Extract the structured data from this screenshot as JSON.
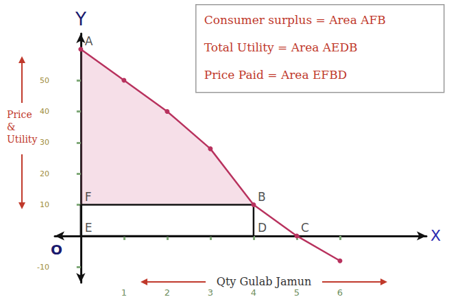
{
  "chart_data": {
    "type": "line",
    "x": [
      0,
      1,
      2,
      3,
      4,
      5,
      6
    ],
    "values": [
      60,
      50,
      40,
      28,
      10,
      0,
      -8
    ],
    "color": "#b8325e",
    "marker": "circle",
    "xlim": [
      -0.6,
      8
    ],
    "xticks": [
      1,
      2,
      3,
      4,
      5,
      6
    ],
    "ylim": [
      -15,
      65
    ],
    "yticks": [
      -10,
      10,
      20,
      30,
      40,
      50
    ],
    "grid": false,
    "x_label": "Qty Gulab Jamun",
    "y_label": "Price & Utility",
    "x_axis_name": "X",
    "y_axis_name": "Y",
    "origin_label": "O",
    "points": [
      {
        "label": "A",
        "x": 0,
        "y": 60
      },
      {
        "label": "F",
        "x": 0,
        "y": 10
      },
      {
        "label": "E",
        "x": 0,
        "y": 0
      },
      {
        "label": "D",
        "x": 4,
        "y": 0
      },
      {
        "label": "B",
        "x": 4,
        "y": 10
      },
      {
        "label": "C",
        "x": 5,
        "y": 0
      }
    ],
    "shaded_area": "AFB",
    "rectangle": "EFBD",
    "notes": [
      "Consumer surplus = Area AFB",
      "Total Utility = Area AEDB",
      "Price Paid = Area EFBD"
    ]
  }
}
